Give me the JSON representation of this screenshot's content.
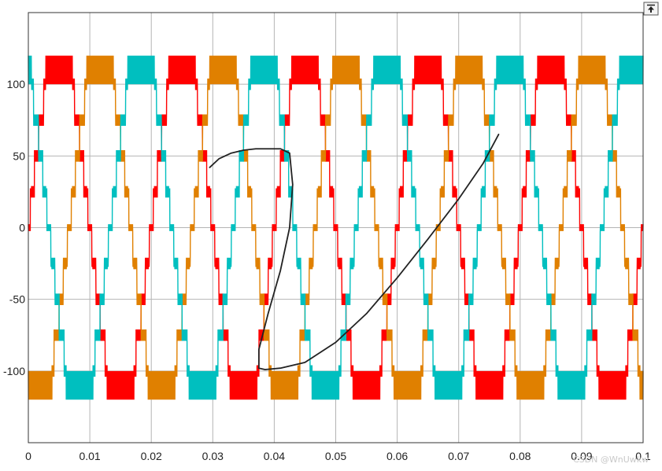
{
  "chart_data": {
    "type": "line",
    "title": "",
    "xlabel": "",
    "ylabel": "",
    "xlim": [
      0,
      0.1
    ],
    "ylim": [
      -150,
      150
    ],
    "grid": true,
    "xticks": [
      "0",
      "0.01",
      "0.02",
      "0.03",
      "0.04",
      "0.05",
      "0.06",
      "0.07",
      "0.08",
      "0.09",
      "0.1"
    ],
    "yticks": [
      "100",
      "50",
      "0",
      "-50",
      "-100"
    ],
    "xtick_values": [
      0,
      0.01,
      0.02,
      0.03,
      0.04,
      0.05,
      0.06,
      0.07,
      0.08,
      0.09,
      0.1
    ],
    "ytick_values": [
      100,
      50,
      0,
      -50,
      -100
    ],
    "waveform": {
      "description_values": "three-phase stepped multilevel voltage with PWM chatter",
      "levels": [
        -120,
        -100,
        -75,
        -50,
        -25,
        0,
        25,
        50,
        75,
        100,
        120
      ],
      "frequency_hz": 50,
      "chatter_amplitude": 4
    },
    "series": [
      {
        "color": "#ff0000",
        "phase_deg": 0
      },
      {
        "color": "#e08000",
        "phase_deg": -120
      },
      {
        "color": "#00bfbf",
        "phase_deg": 120
      }
    ],
    "overlay_curve": {
      "color": "#222222",
      "x": [
        0.0295,
        0.031,
        0.033,
        0.035,
        0.037,
        0.039,
        0.041,
        0.0425,
        0.043,
        0.0425,
        0.041,
        0.039,
        0.0375,
        0.0375,
        0.0385,
        0.041,
        0.045,
        0.05,
        0.055,
        0.06,
        0.065,
        0.07,
        0.074,
        0.0765
      ],
      "y": [
        42,
        48,
        52,
        54,
        55,
        55,
        55,
        52,
        30,
        0,
        -30,
        -60,
        -85,
        -98,
        -99,
        -98,
        -94,
        -80,
        -60,
        -35,
        -8,
        20,
        45,
        65
      ]
    }
  },
  "watermark": "CSDN @WnUwkw",
  "toolbar": {
    "icon": "dock-restore-icon"
  }
}
